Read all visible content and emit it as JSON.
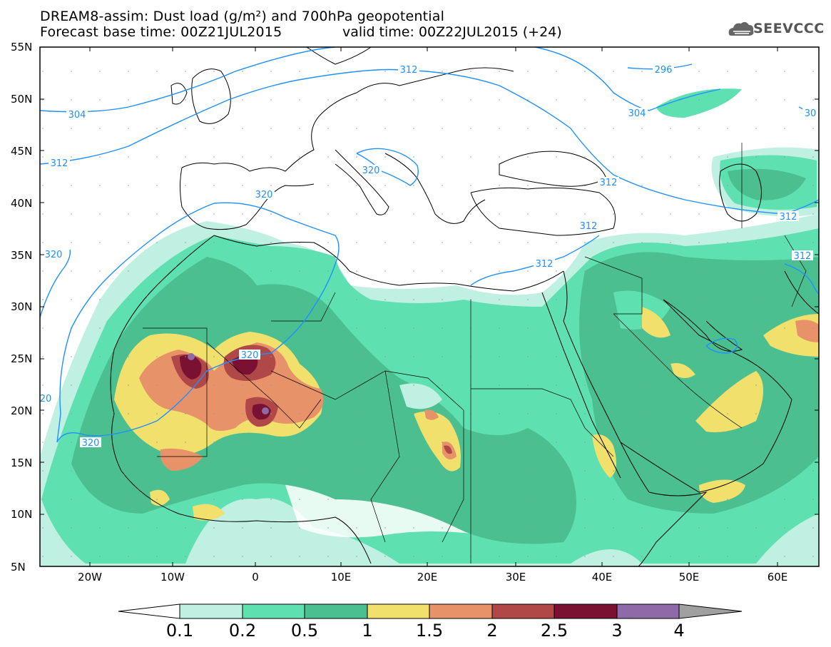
{
  "header": {
    "line1": "DREAM8-assim: Dust load (g/m²) and 700hPa geopotential",
    "line2a": "Forecast base time: 00Z21JUL2015",
    "line2b": "valid time: 00Z22JUL2015 (+24)"
  },
  "logo": {
    "text": "SEEVCCC",
    "icon": "cloud-logo-icon"
  },
  "axes": {
    "lat_labels": [
      "55N",
      "50N",
      "45N",
      "40N",
      "35N",
      "30N",
      "25N",
      "20N",
      "15N",
      "10N",
      "5N"
    ],
    "lon_labels": [
      "20W",
      "10W",
      "0",
      "10E",
      "20E",
      "30E",
      "40E",
      "50E",
      "60E"
    ]
  },
  "contours": {
    "labels": [
      "304",
      "312",
      "296",
      "304",
      "30",
      "312",
      "320",
      "312",
      "312",
      "312",
      "320",
      "312",
      "312",
      "320",
      "320",
      "20",
      "320"
    ]
  },
  "colorbar": {
    "ticks": [
      "0.1",
      "0.2",
      "0.5",
      "1",
      "1.5",
      "2",
      "2.5",
      "3",
      "4"
    ],
    "colors": [
      "#bff0e2",
      "#5fe0b0",
      "#4bbf90",
      "#f2e06c",
      "#e8926a",
      "#b04848",
      "#7a1032",
      "#8e6aa8",
      "#a0a0a0"
    ]
  },
  "palette": {
    "contour_line": "#1e90ff",
    "coast_line": "#000000",
    "dust_low": "#bff0e2",
    "dust_mid": "#5fe0b0",
    "dust_high": "#4bbf90",
    "dust_yellow": "#f2e06c",
    "dust_orange": "#e8926a",
    "dust_red": "#b04848",
    "dust_maroon": "#7a1032",
    "dust_purple": "#8e6aa8"
  }
}
